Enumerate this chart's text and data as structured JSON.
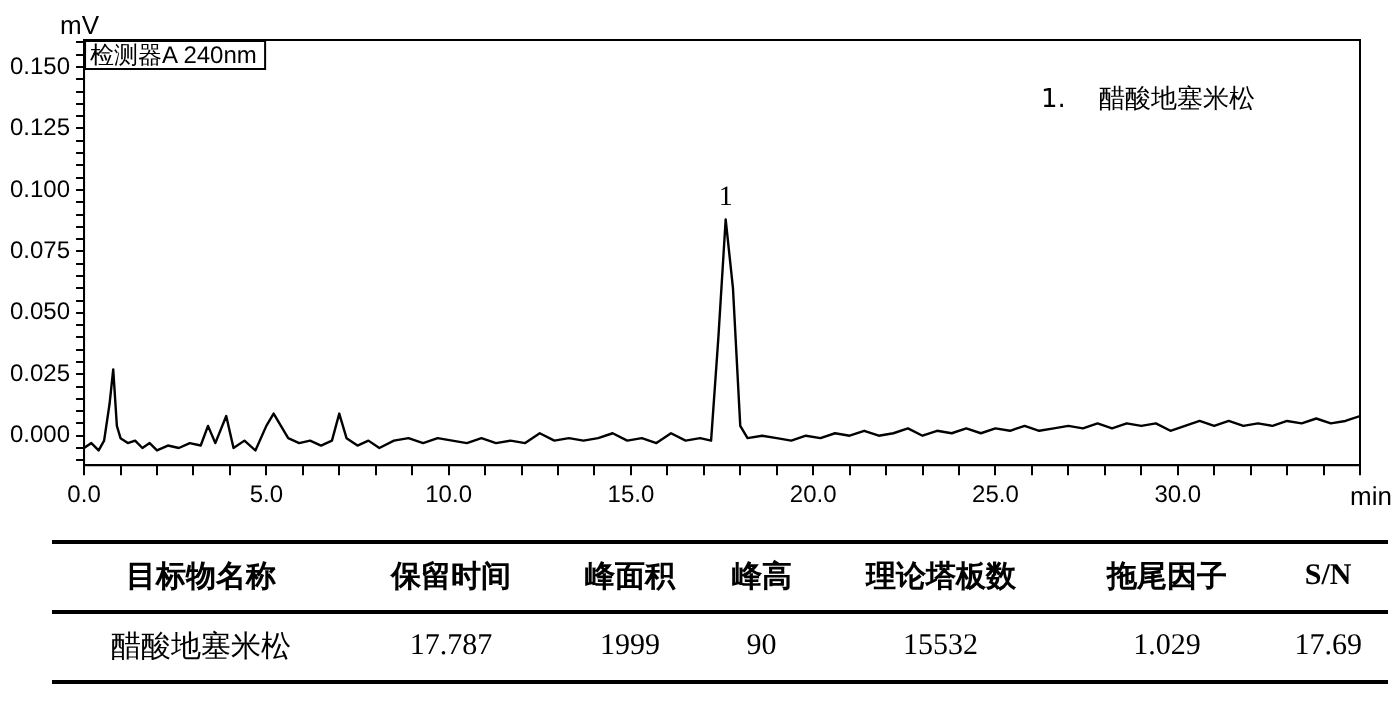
{
  "chart_data": {
    "type": "line",
    "ylabel": "mV",
    "xlabel": "min",
    "legend": "top left",
    "grid": false,
    "marker": "none",
    "line_style": "solid",
    "xlim": [
      0,
      35
    ],
    "ylim": [
      -0.012,
      0.161
    ],
    "xticks": [
      {
        "value": 0,
        "label": "0.0"
      },
      {
        "value": 1,
        "label": null
      },
      {
        "value": 2,
        "label": null
      },
      {
        "value": 3,
        "label": null
      },
      {
        "value": 4,
        "label": null
      },
      {
        "value": 5,
        "label": "5.0"
      },
      {
        "value": 6,
        "label": null
      },
      {
        "value": 7,
        "label": null
      },
      {
        "value": 8,
        "label": null
      },
      {
        "value": 9,
        "label": null
      },
      {
        "value": 10,
        "label": "10.0"
      },
      {
        "value": 11,
        "label": null
      },
      {
        "value": 12,
        "label": null
      },
      {
        "value": 13,
        "label": null
      },
      {
        "value": 14,
        "label": null
      },
      {
        "value": 15,
        "label": "15.0"
      },
      {
        "value": 16,
        "label": null
      },
      {
        "value": 17,
        "label": null
      },
      {
        "value": 18,
        "label": null
      },
      {
        "value": 19,
        "label": null
      },
      {
        "value": 20,
        "label": "20.0"
      },
      {
        "value": 21,
        "label": null
      },
      {
        "value": 22,
        "label": null
      },
      {
        "value": 23,
        "label": null
      },
      {
        "value": 24,
        "label": null
      },
      {
        "value": 25,
        "label": "25.0"
      },
      {
        "value": 26,
        "label": null
      },
      {
        "value": 27,
        "label": null
      },
      {
        "value": 28,
        "label": null
      },
      {
        "value": 29,
        "label": null
      },
      {
        "value": 30,
        "label": "30.0"
      },
      {
        "value": 31,
        "label": null
      },
      {
        "value": 32,
        "label": null
      },
      {
        "value": 33,
        "label": null
      },
      {
        "value": 34,
        "label": null
      },
      {
        "value": 35,
        "label": null
      }
    ],
    "yticks": [
      {
        "value": -0.01,
        "label": null
      },
      {
        "value": -0.005,
        "label": null
      },
      {
        "value": 0,
        "label": "0.000"
      },
      {
        "value": 0.005,
        "label": null
      },
      {
        "value": 0.01,
        "label": null
      },
      {
        "value": 0.015,
        "label": null
      },
      {
        "value": 0.02,
        "label": null
      },
      {
        "value": 0.025,
        "label": "0.025"
      },
      {
        "value": 0.03,
        "label": null
      },
      {
        "value": 0.035,
        "label": null
      },
      {
        "value": 0.04,
        "label": null
      },
      {
        "value": 0.045,
        "label": null
      },
      {
        "value": 0.05,
        "label": "0.050"
      },
      {
        "value": 0.055,
        "label": null
      },
      {
        "value": 0.06,
        "label": null
      },
      {
        "value": 0.065,
        "label": null
      },
      {
        "value": 0.07,
        "label": null
      },
      {
        "value": 0.075,
        "label": "0.075"
      },
      {
        "value": 0.08,
        "label": null
      },
      {
        "value": 0.085,
        "label": null
      },
      {
        "value": 0.09,
        "label": null
      },
      {
        "value": 0.095,
        "label": null
      },
      {
        "value": 0.1,
        "label": "0.100"
      },
      {
        "value": 0.105,
        "label": null
      },
      {
        "value": 0.11,
        "label": null
      },
      {
        "value": 0.115,
        "label": null
      },
      {
        "value": 0.12,
        "label": null
      },
      {
        "value": 0.125,
        "label": "0.125"
      },
      {
        "value": 0.13,
        "label": null
      },
      {
        "value": 0.135,
        "label": null
      },
      {
        "value": 0.14,
        "label": null
      },
      {
        "value": 0.145,
        "label": null
      },
      {
        "value": 0.15,
        "label": "0.150"
      },
      {
        "value": 0.155,
        "label": null
      },
      {
        "value": 0.16,
        "label": null
      }
    ],
    "series": [
      {
        "name": "检测器A 240nm",
        "color": "#000000",
        "x": [
          0.0,
          0.2,
          0.4,
          0.55,
          0.7,
          0.8,
          0.9,
          1.0,
          1.2,
          1.4,
          1.6,
          1.8,
          2.0,
          2.3,
          2.6,
          2.9,
          3.2,
          3.4,
          3.6,
          3.9,
          4.1,
          4.4,
          4.7,
          5.0,
          5.2,
          5.4,
          5.6,
          5.9,
          6.2,
          6.5,
          6.8,
          7.0,
          7.2,
          7.5,
          7.8,
          8.1,
          8.5,
          8.9,
          9.3,
          9.7,
          10.1,
          10.5,
          10.9,
          11.3,
          11.7,
          12.1,
          12.5,
          12.9,
          13.3,
          13.7,
          14.1,
          14.5,
          14.9,
          15.3,
          15.7,
          16.1,
          16.5,
          16.9,
          17.2,
          17.4,
          17.6,
          17.8,
          18.0,
          18.2,
          18.6,
          19.0,
          19.4,
          19.8,
          20.2,
          20.6,
          21.0,
          21.4,
          21.8,
          22.2,
          22.6,
          23.0,
          23.4,
          23.8,
          24.2,
          24.6,
          25.0,
          25.4,
          25.8,
          26.2,
          26.6,
          27.0,
          27.4,
          27.8,
          28.2,
          28.6,
          29.0,
          29.4,
          29.8,
          30.2,
          30.6,
          31.0,
          31.4,
          31.8,
          32.2,
          32.6,
          33.0,
          33.4,
          33.8,
          34.2,
          34.6,
          35.0
        ],
        "values": [
          -0.005,
          -0.003,
          -0.006,
          -0.002,
          0.013,
          0.027,
          0.004,
          -0.001,
          -0.003,
          -0.002,
          -0.005,
          -0.003,
          -0.006,
          -0.004,
          -0.005,
          -0.003,
          -0.004,
          0.004,
          -0.003,
          0.008,
          -0.005,
          -0.002,
          -0.006,
          0.004,
          0.009,
          0.004,
          -0.001,
          -0.003,
          -0.002,
          -0.004,
          -0.002,
          0.009,
          -0.001,
          -0.004,
          -0.002,
          -0.005,
          -0.002,
          -0.001,
          -0.003,
          -0.001,
          -0.002,
          -0.003,
          -0.001,
          -0.003,
          -0.002,
          -0.003,
          0.001,
          -0.002,
          -0.001,
          -0.002,
          -0.001,
          0.001,
          -0.002,
          -0.001,
          -0.003,
          0.001,
          -0.002,
          -0.001,
          -0.002,
          0.04,
          0.088,
          0.06,
          0.004,
          -0.001,
          0.0,
          -0.001,
          -0.002,
          0.0,
          -0.001,
          0.001,
          0.0,
          0.002,
          0.0,
          0.001,
          0.003,
          0.0,
          0.002,
          0.001,
          0.003,
          0.001,
          0.003,
          0.002,
          0.004,
          0.002,
          0.003,
          0.004,
          0.003,
          0.005,
          0.003,
          0.005,
          0.004,
          0.005,
          0.002,
          0.004,
          0.006,
          0.004,
          0.006,
          0.004,
          0.005,
          0.004,
          0.006,
          0.005,
          0.007,
          0.005,
          0.006,
          0.008
        ]
      }
    ],
    "annotations": [
      {
        "text": "1",
        "x": 17.6,
        "y": 0.088
      },
      "1.    醋酸地塞米松",
      "目标物名称",
      "保留时间",
      "峰面积",
      "峰高",
      "理论塔板数",
      "拖尾因子",
      "S/N",
      "醋酸地塞米松",
      "17.787",
      "1999",
      "90",
      "15532",
      "1.029",
      "17.69"
    ]
  }
}
